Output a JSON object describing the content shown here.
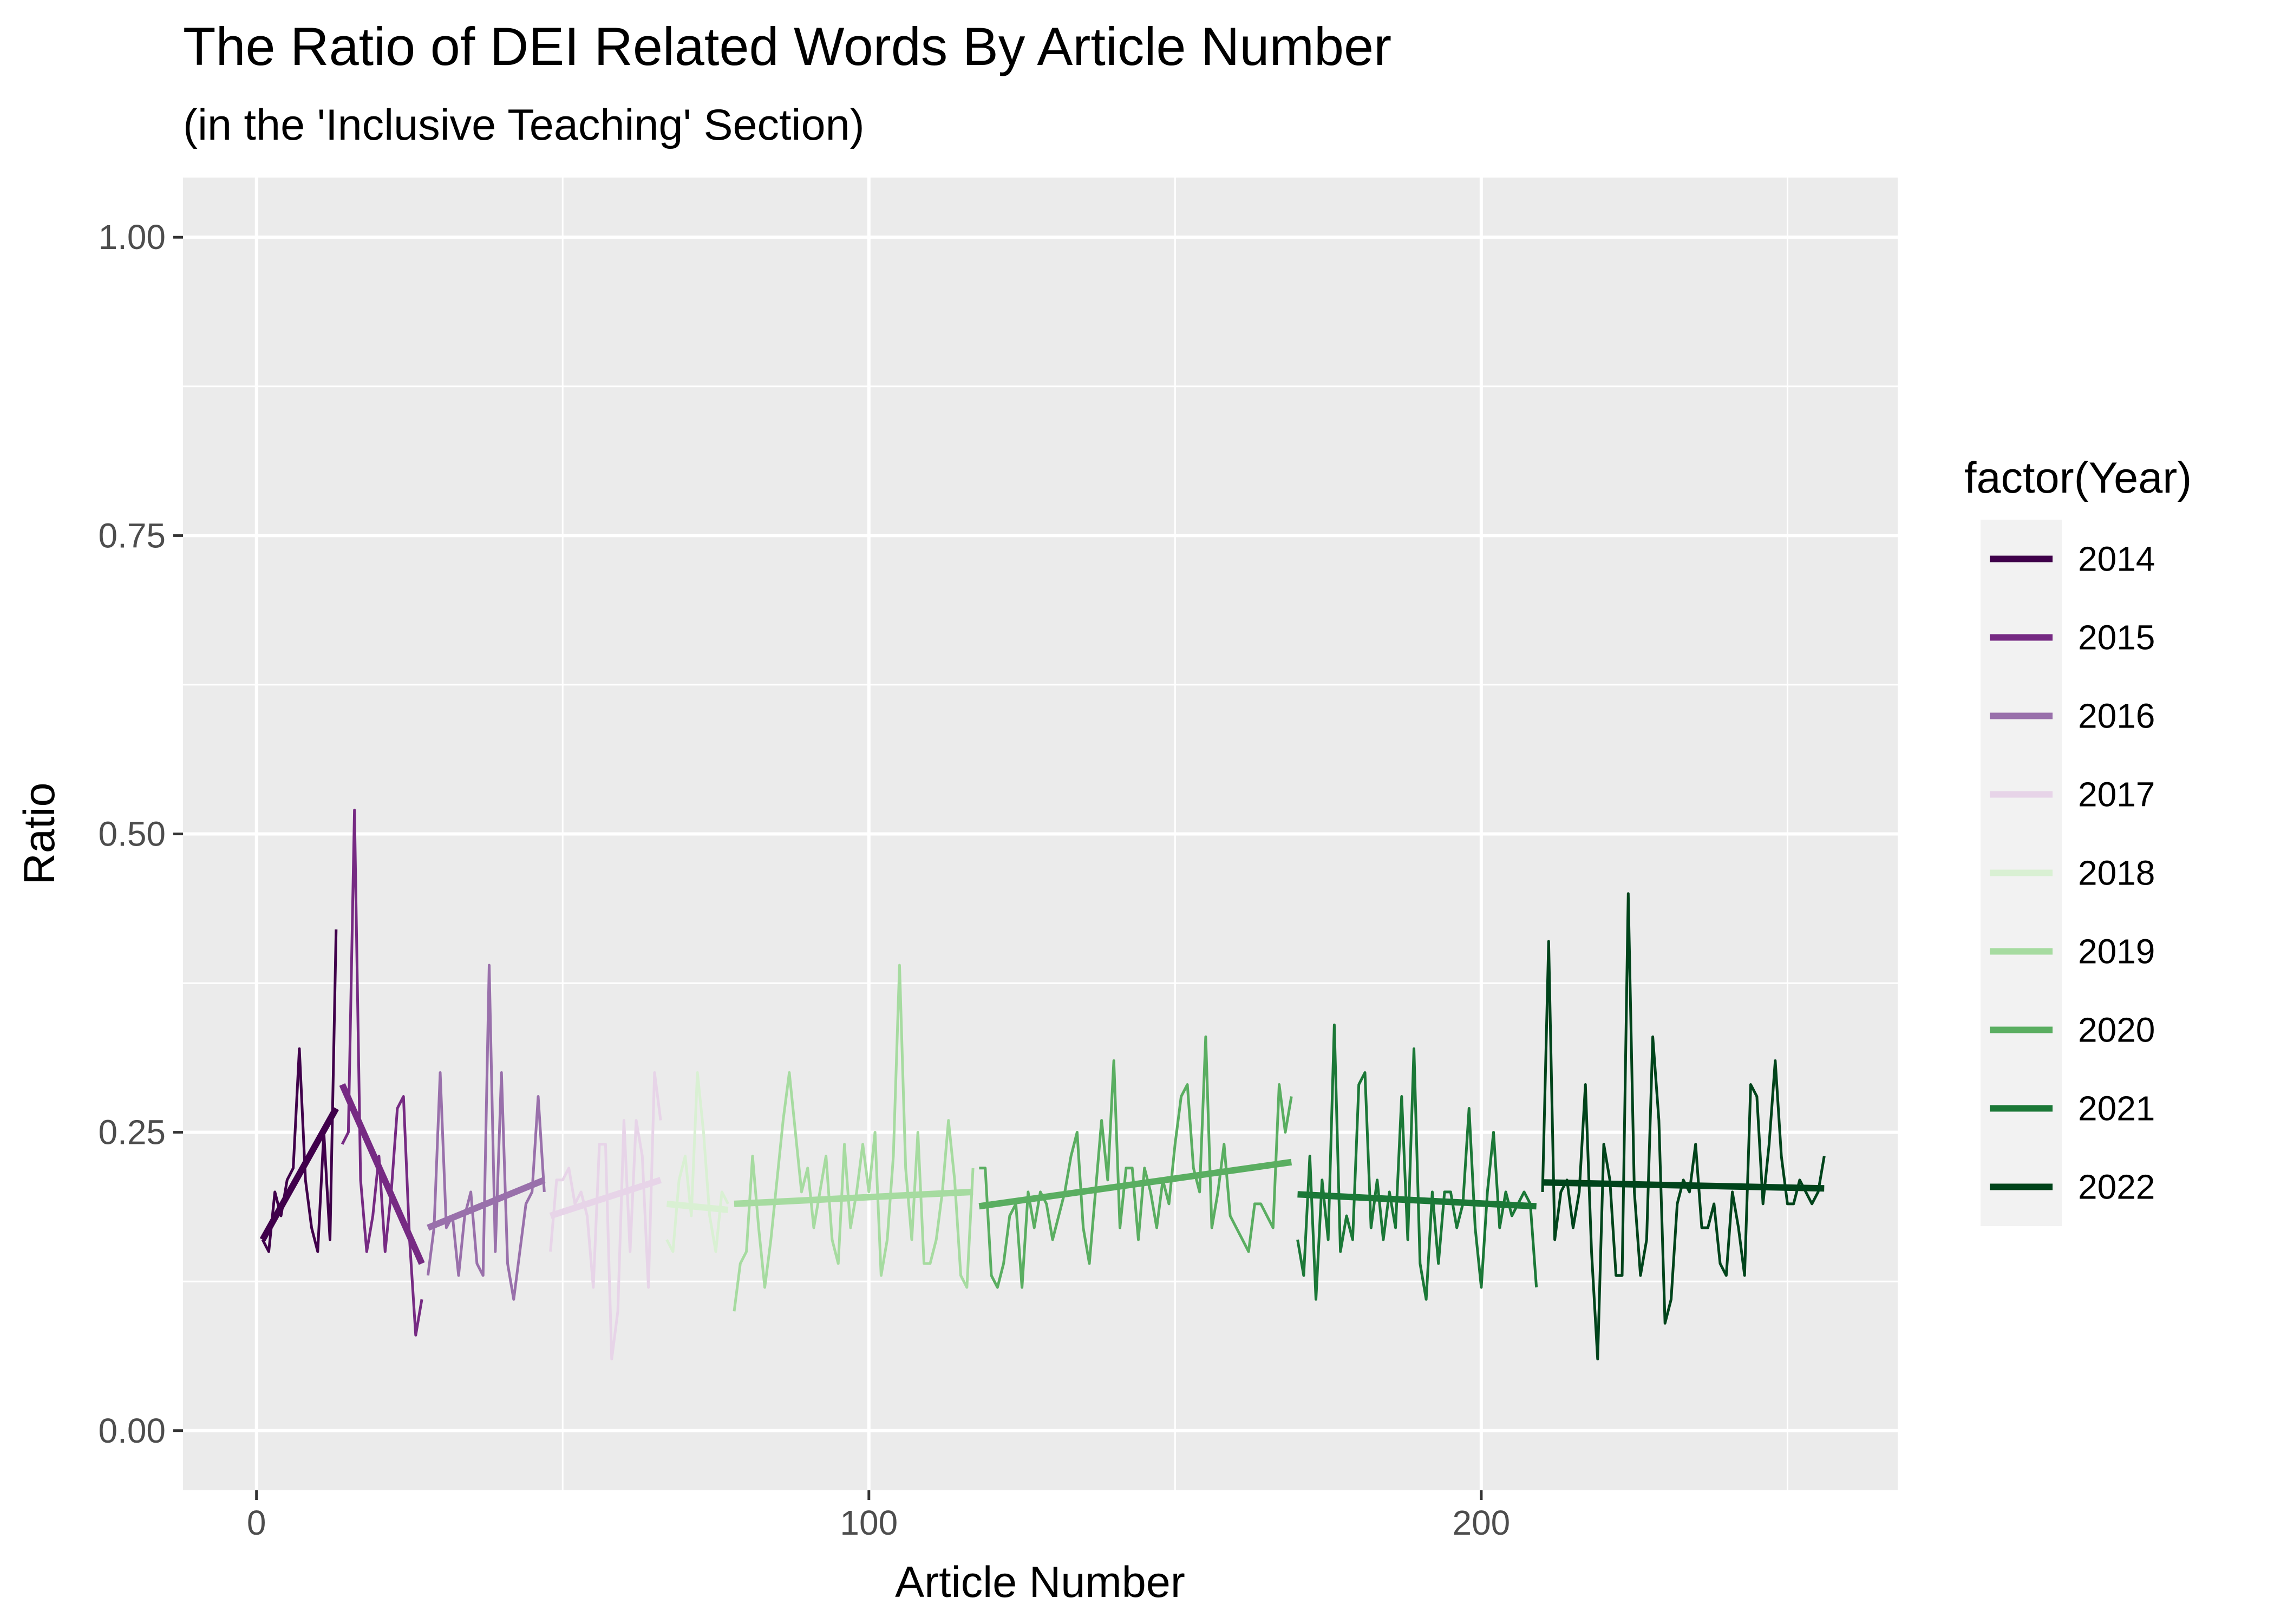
{
  "chart_data": {
    "type": "line",
    "title": "The Ratio of DEI Related Words By Article Number",
    "subtitle": "(in the 'Inclusive Teaching' Section)",
    "xlabel": "Article Number",
    "ylabel": "Ratio",
    "xlim": [
      -12,
      268
    ],
    "ylim": [
      -0.05,
      1.05
    ],
    "x_ticks": [
      0,
      100,
      200
    ],
    "x_tick_labels": [
      "0",
      "100",
      "200"
    ],
    "y_ticks": [
      0,
      0.25,
      0.5,
      0.75,
      1
    ],
    "y_tick_labels": [
      "0.00",
      "0.25",
      "0.50",
      "0.75",
      "1.00"
    ],
    "grid": true,
    "legend": {
      "title": "factor(Year)",
      "position": "right"
    },
    "series": [
      {
        "name": "2014",
        "color": "#40004b",
        "x": [
          1,
          2,
          3,
          4,
          5,
          6,
          7,
          8,
          9,
          10,
          11,
          12,
          13
        ],
        "y": [
          0.16,
          0.15,
          0.2,
          0.18,
          0.21,
          0.22,
          0.32,
          0.21,
          0.17,
          0.15,
          0.25,
          0.16,
          0.42
        ],
        "trend": [
          [
            1,
            0.16
          ],
          [
            13,
            0.27
          ]
        ]
      },
      {
        "name": "2015",
        "color": "#762a83",
        "x": [
          14,
          15,
          16,
          17,
          18,
          19,
          20,
          21,
          22,
          23,
          24,
          25,
          26,
          27
        ],
        "y": [
          0.24,
          0.25,
          0.52,
          0.21,
          0.15,
          0.18,
          0.23,
          0.15,
          0.2,
          0.27,
          0.28,
          0.16,
          0.08,
          0.11
        ],
        "trend": [
          [
            14,
            0.29
          ],
          [
            27,
            0.14
          ]
        ]
      },
      {
        "name": "2016",
        "color": "#9970ab",
        "x": [
          28,
          29,
          30,
          31,
          32,
          33,
          34,
          35,
          36,
          37,
          38,
          39,
          40,
          41,
          42,
          43,
          44,
          45,
          46,
          47
        ],
        "y": [
          0.13,
          0.17,
          0.3,
          0.17,
          0.18,
          0.13,
          0.18,
          0.2,
          0.14,
          0.13,
          0.39,
          0.15,
          0.3,
          0.14,
          0.11,
          0.15,
          0.19,
          0.2,
          0.28,
          0.2
        ],
        "trend": [
          [
            28,
            0.17
          ],
          [
            47,
            0.21
          ]
        ]
      },
      {
        "name": "2017",
        "color": "#e7d4e8",
        "x": [
          48,
          49,
          50,
          51,
          52,
          53,
          54,
          55,
          56,
          57,
          58,
          59,
          60,
          61,
          62,
          63,
          64,
          65,
          66
        ],
        "y": [
          0.15,
          0.21,
          0.21,
          0.22,
          0.19,
          0.2,
          0.18,
          0.12,
          0.24,
          0.24,
          0.06,
          0.1,
          0.26,
          0.15,
          0.26,
          0.23,
          0.12,
          0.3,
          0.26
        ],
        "trend": [
          [
            48,
            0.18
          ],
          [
            66,
            0.21
          ]
        ]
      },
      {
        "name": "2018",
        "color": "#d9f0d3",
        "x": [
          67,
          68,
          69,
          70,
          71,
          72,
          73,
          74,
          75,
          76,
          77
        ],
        "y": [
          0.16,
          0.15,
          0.21,
          0.23,
          0.18,
          0.3,
          0.25,
          0.18,
          0.15,
          0.2,
          0.19
        ],
        "trend": [
          [
            67,
            0.19
          ],
          [
            77,
            0.185
          ]
        ]
      },
      {
        "name": "2019",
        "color": "#a6dba0",
        "x": [
          78,
          79,
          80,
          81,
          82,
          83,
          84,
          85,
          86,
          87,
          88,
          89,
          90,
          91,
          92,
          93,
          94,
          95,
          96,
          97,
          98,
          99,
          100,
          101,
          102,
          103,
          104,
          105,
          106,
          107,
          108,
          109,
          110,
          111,
          112,
          113,
          114,
          115,
          116,
          117
        ],
        "y": [
          0.1,
          0.14,
          0.15,
          0.23,
          0.17,
          0.12,
          0.16,
          0.21,
          0.26,
          0.3,
          0.25,
          0.2,
          0.22,
          0.17,
          0.2,
          0.23,
          0.16,
          0.14,
          0.24,
          0.17,
          0.2,
          0.24,
          0.2,
          0.25,
          0.13,
          0.16,
          0.23,
          0.39,
          0.22,
          0.16,
          0.25,
          0.14,
          0.14,
          0.16,
          0.2,
          0.26,
          0.21,
          0.13,
          0.12,
          0.22
        ],
        "trend": [
          [
            78,
            0.19
          ],
          [
            117,
            0.2
          ]
        ]
      },
      {
        "name": "2020",
        "color": "#5aae61",
        "x": [
          118,
          119,
          120,
          121,
          122,
          123,
          124,
          125,
          126,
          127,
          128,
          129,
          130,
          131,
          132,
          133,
          134,
          135,
          136,
          137,
          138,
          139,
          140,
          141,
          142,
          143,
          144,
          145,
          146,
          147,
          148,
          149,
          150,
          151,
          152,
          153,
          154,
          155,
          156,
          157,
          158,
          159,
          160,
          161,
          162,
          163,
          164,
          165,
          166,
          167,
          168,
          169
        ],
        "y": [
          0.22,
          0.22,
          0.13,
          0.12,
          0.14,
          0.18,
          0.19,
          0.12,
          0.2,
          0.17,
          0.2,
          0.19,
          0.16,
          0.18,
          0.2,
          0.23,
          0.25,
          0.17,
          0.14,
          0.2,
          0.26,
          0.21,
          0.31,
          0.17,
          0.22,
          0.22,
          0.16,
          0.22,
          0.2,
          0.17,
          0.21,
          0.19,
          0.24,
          0.28,
          0.29,
          0.22,
          0.2,
          0.33,
          0.17,
          0.2,
          0.24,
          0.18,
          0.17,
          0.16,
          0.15,
          0.19,
          0.19,
          0.18,
          0.17,
          0.29,
          0.25,
          0.28
        ],
        "trend": [
          [
            118,
            0.188
          ],
          [
            169,
            0.225
          ]
        ]
      },
      {
        "name": "2021",
        "color": "#1b7837",
        "x": [
          170,
          171,
          172,
          173,
          174,
          175,
          176,
          177,
          178,
          179,
          180,
          181,
          182,
          183,
          184,
          185,
          186,
          187,
          188,
          189,
          190,
          191,
          192,
          193,
          194,
          195,
          196,
          197,
          198,
          199,
          200,
          201,
          202,
          203,
          204,
          205,
          206,
          207,
          208,
          209
        ],
        "y": [
          0.16,
          0.13,
          0.23,
          0.11,
          0.21,
          0.16,
          0.34,
          0.15,
          0.18,
          0.16,
          0.29,
          0.3,
          0.17,
          0.21,
          0.16,
          0.2,
          0.17,
          0.28,
          0.16,
          0.32,
          0.14,
          0.11,
          0.2,
          0.14,
          0.2,
          0.2,
          0.17,
          0.19,
          0.27,
          0.17,
          0.12,
          0.2,
          0.25,
          0.17,
          0.2,
          0.18,
          0.19,
          0.2,
          0.19,
          0.12
        ],
        "trend": [
          [
            170,
            0.198
          ],
          [
            209,
            0.188
          ]
        ]
      },
      {
        "name": "2022",
        "color": "#00441b",
        "x": [
          210,
          211,
          212,
          213,
          214,
          215,
          216,
          217,
          218,
          219,
          220,
          221,
          222,
          223,
          224,
          225,
          226,
          227,
          228,
          229,
          230,
          231,
          232,
          233,
          234,
          235,
          236,
          237,
          238,
          239,
          240,
          241,
          242,
          243,
          244,
          245,
          246,
          247,
          248,
          249,
          250,
          251,
          252,
          253,
          254,
          255,
          256
        ],
        "y": [
          0.2,
          0.41,
          0.16,
          0.2,
          0.21,
          0.17,
          0.2,
          0.29,
          0.15,
          0.06,
          0.24,
          0.21,
          0.13,
          0.13,
          0.45,
          0.2,
          0.13,
          0.16,
          0.33,
          0.26,
          0.09,
          0.11,
          0.19,
          0.21,
          0.2,
          0.24,
          0.17,
          0.17,
          0.19,
          0.14,
          0.13,
          0.2,
          0.17,
          0.13,
          0.29,
          0.28,
          0.19,
          0.24,
          0.31,
          0.23,
          0.19,
          0.19,
          0.21,
          0.2,
          0.19,
          0.2,
          0.23
        ],
        "trend": [
          [
            210,
            0.208
          ],
          [
            256,
            0.203
          ]
        ]
      }
    ]
  }
}
